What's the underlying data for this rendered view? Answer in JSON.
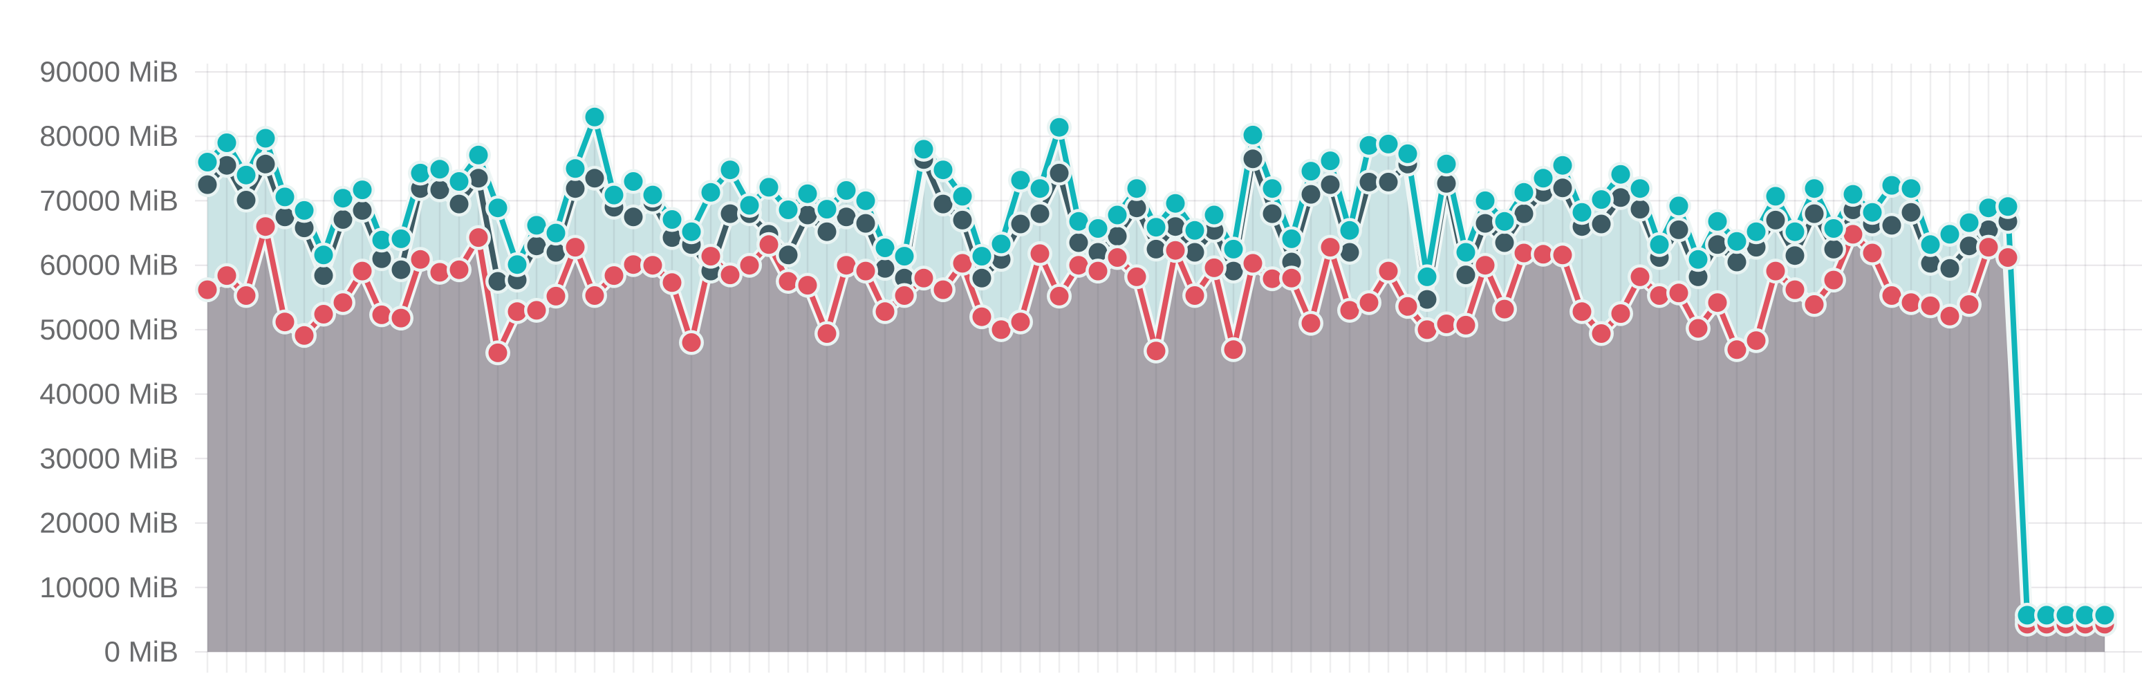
{
  "chart_data": {
    "type": "line",
    "title": "",
    "subtitle": "",
    "unit": "MiB",
    "xlabel": "",
    "ylabel": "",
    "ylim": [
      0,
      90000
    ],
    "y_tick_step": 10000,
    "y_tick_labels": [
      "90000 MiB",
      "80000 MiB",
      "70000 MiB",
      "60000 MiB",
      "50000 MiB",
      "40000 MiB",
      "30000 MiB",
      "20000 MiB",
      "10000 MiB",
      "0 MiB"
    ],
    "y_tick_values": [
      90000,
      80000,
      70000,
      60000,
      50000,
      40000,
      30000,
      20000,
      10000,
      0
    ],
    "x_tick_labels_visible": false,
    "grid": true,
    "legend_position": "none",
    "num_points": 99,
    "colors": {
      "cyan": "#0fb5ba",
      "cyan_fill": "#cbe4e5",
      "slate": "#3d5a63",
      "red": "#e0525f",
      "red_fill": "#a7a3aa",
      "halo": "#e9f4f3",
      "grid_h": "#e8e6e9",
      "grid_v": "rgba(70,65,80,0.09)",
      "axis_label": "#696a6c",
      "background": "#ffffff"
    },
    "series": [
      {
        "name": "cyan-series",
        "color": "#0fb5ba",
        "fill_color": "#cbe4e5",
        "point_style": "circle",
        "values": [
          76000,
          79000,
          74000,
          79700,
          70600,
          68500,
          61600,
          70400,
          71700,
          63900,
          64100,
          74300,
          74900,
          73000,
          77100,
          68900,
          60100,
          66200,
          65000,
          75000,
          83000,
          70900,
          73000,
          70900,
          67100,
          65200,
          71300,
          74800,
          69300,
          72100,
          68600,
          71100,
          68700,
          71600,
          70000,
          62700,
          61400,
          78000,
          74800,
          70700,
          61400,
          63300,
          73200,
          71900,
          81400,
          66800,
          65700,
          67800,
          71900,
          65900,
          69600,
          65400,
          67800,
          62500,
          80200,
          71900,
          64100,
          74600,
          76200,
          65400,
          78600,
          78800,
          77300,
          58200,
          75700,
          62000,
          70000,
          66800,
          71300,
          73500,
          75500,
          68200,
          70200,
          74100,
          71900,
          63200,
          69200,
          60900,
          66800,
          63700,
          65200,
          70700,
          65200,
          71900,
          65700,
          71000,
          68200,
          72400,
          71900,
          63200,
          64800,
          66600,
          68900,
          69100,
          5700,
          5700,
          5700,
          5700,
          5700
        ]
      },
      {
        "name": "slate-series",
        "color": "#3d5a63",
        "fill_color": null,
        "point_style": "circle",
        "values": [
          72500,
          75500,
          70100,
          75700,
          67500,
          65800,
          58400,
          67100,
          68500,
          61000,
          59300,
          71900,
          71700,
          69500,
          73500,
          57500,
          57700,
          63000,
          62000,
          71900,
          73500,
          69000,
          67500,
          69800,
          64300,
          63200,
          59100,
          68000,
          68000,
          64800,
          61600,
          67800,
          65200,
          67500,
          66500,
          59500,
          58000,
          76400,
          69500,
          67000,
          58000,
          60900,
          66400,
          68000,
          74300,
          63500,
          62000,
          64500,
          68900,
          62500,
          66000,
          62000,
          65400,
          59100,
          76500,
          68000,
          60500,
          71000,
          72500,
          62000,
          72900,
          72900,
          75700,
          54700,
          72700,
          58500,
          66500,
          63500,
          68000,
          71300,
          72000,
          66000,
          66400,
          70500,
          68700,
          61200,
          65500,
          58200,
          63200,
          60500,
          62800,
          67000,
          61500,
          68000,
          62500,
          68600,
          66400,
          66200,
          68200,
          60300,
          59500,
          63000,
          65500,
          66800,
          5000,
          5000,
          5000,
          5000,
          5000
        ]
      },
      {
        "name": "red-series",
        "color": "#e0525f",
        "fill_color": "#a7a3aa",
        "point_style": "circle",
        "values": [
          56200,
          58400,
          55300,
          66000,
          51200,
          49100,
          52400,
          54200,
          59100,
          52300,
          51800,
          60900,
          58900,
          59300,
          64300,
          46400,
          52800,
          53000,
          55200,
          62800,
          55300,
          58400,
          60100,
          60000,
          57300,
          48000,
          61400,
          58500,
          60000,
          63200,
          57500,
          56900,
          49400,
          60000,
          59100,
          52800,
          55300,
          58000,
          56200,
          60300,
          52000,
          50000,
          51200,
          61800,
          55200,
          60000,
          59100,
          61200,
          58200,
          46700,
          62300,
          55300,
          59600,
          46900,
          60300,
          57900,
          58000,
          51000,
          62800,
          53000,
          54200,
          59100,
          53600,
          50000,
          50900,
          50700,
          60000,
          53200,
          61900,
          61700,
          61600,
          52800,
          49400,
          52500,
          58200,
          55300,
          55700,
          50200,
          54200,
          46900,
          48300,
          59100,
          56200,
          53900,
          57700,
          64800,
          61900,
          55300,
          54200,
          53700,
          52100,
          53900,
          62800,
          61200,
          4300,
          4300,
          4300,
          4300,
          4300
        ]
      }
    ]
  }
}
